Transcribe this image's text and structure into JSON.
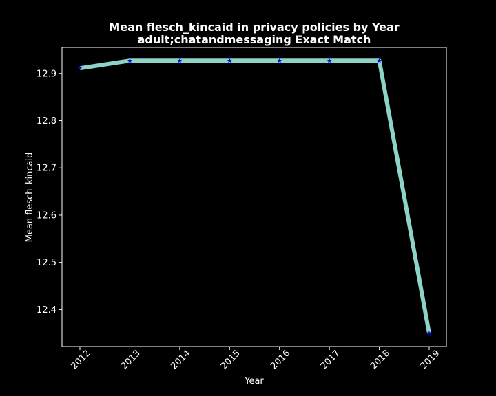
{
  "chart_data": {
    "type": "line",
    "title": "Mean flesch_kincaid in privacy policies by Year",
    "subtitle": "adult;chatandmessaging Exact Match",
    "xlabel": "Year",
    "ylabel": "Mean flesch_kincaid",
    "x": [
      "2012",
      "2013",
      "2014",
      "2015",
      "2016",
      "2017",
      "2018",
      "2019"
    ],
    "series": [
      {
        "values": [
          12.911,
          12.927,
          12.927,
          12.927,
          12.927,
          12.927,
          12.927,
          12.35
        ]
      }
    ],
    "yticks": [
      12.4,
      12.5,
      12.6,
      12.7,
      12.8,
      12.9
    ],
    "ytick_labels": [
      "12.4",
      "12.5",
      "12.6",
      "12.7",
      "12.8",
      "12.9"
    ],
    "ylim": [
      12.322,
      12.955
    ],
    "grid": false,
    "colors": {
      "background": "#000000",
      "line": "#8dd3c7",
      "marker": "#0000ff",
      "text": "#ffffff"
    }
  }
}
